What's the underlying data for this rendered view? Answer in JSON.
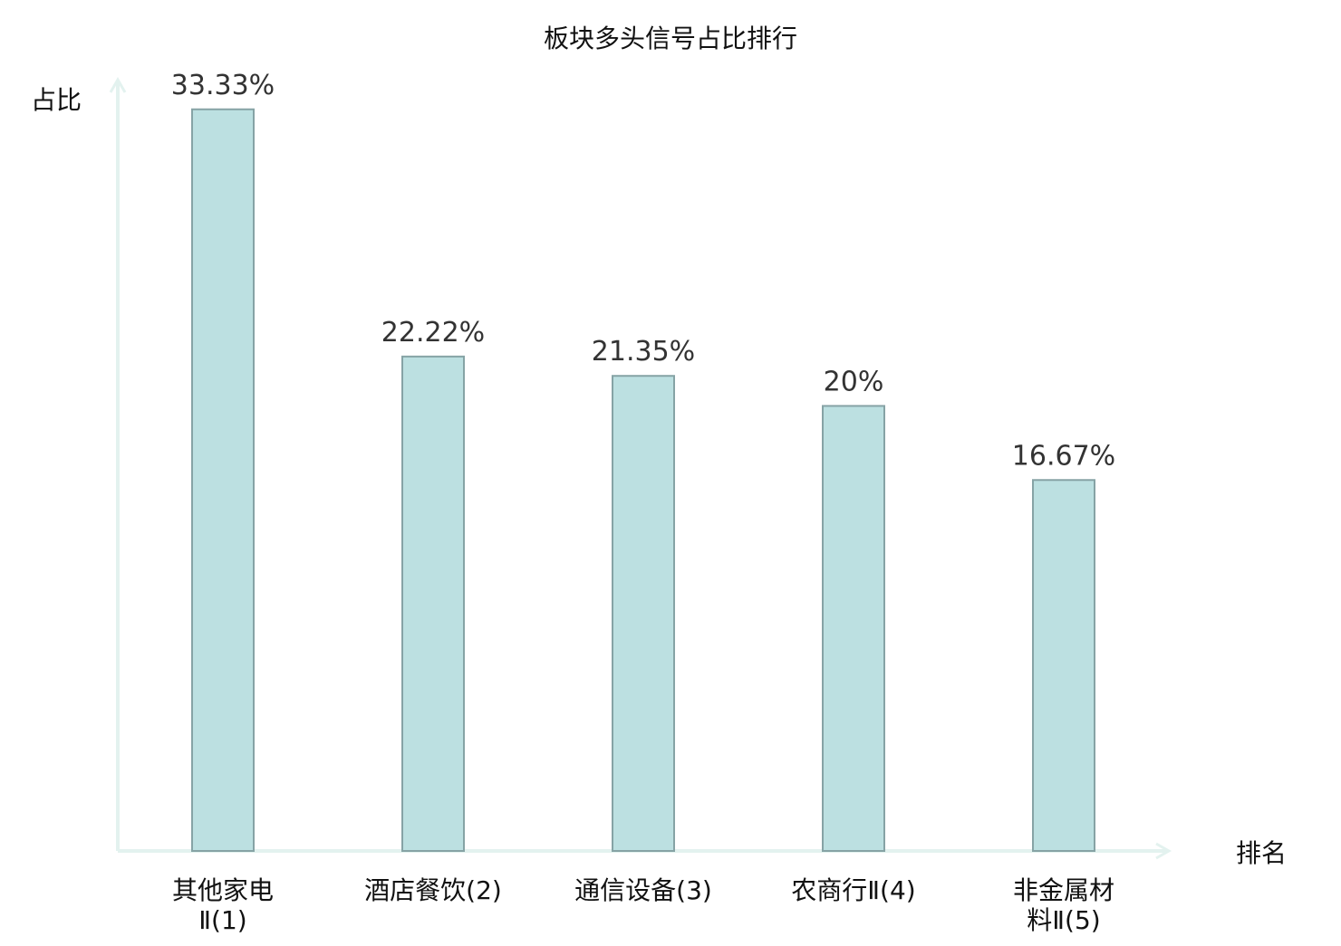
{
  "colors": {
    "bar_fill": "#bce0e1",
    "bar_stroke": "#86a3a5",
    "axis": "#e3f2ef",
    "text": "#111111",
    "value_text": "#333333",
    "highlight": "#e02020"
  },
  "chart_data": {
    "type": "bar",
    "title": "板块多头信号占比排行",
    "ylabel": "占比",
    "xlabel": "排名",
    "ylim": [
      0,
      34.5
    ],
    "grid": false,
    "categories": [
      {
        "label_lines": [
          "其他家电",
          "Ⅱ(1)"
        ],
        "highlight": false
      },
      {
        "label_lines": [
          "酒店餐饮(2)"
        ],
        "highlight": false
      },
      {
        "label_lines": [
          "通信设备(3)"
        ],
        "highlight": true
      },
      {
        "label_lines": [
          "农商行Ⅱ(4)"
        ],
        "highlight": false
      },
      {
        "label_lines": [
          "非金属材",
          "料Ⅱ(5)"
        ],
        "highlight": false
      }
    ],
    "values": [
      33.33,
      22.22,
      21.35,
      20,
      16.67
    ],
    "value_labels": [
      "33.33%",
      "22.22%",
      "21.35%",
      "20%",
      "16.67%"
    ]
  }
}
